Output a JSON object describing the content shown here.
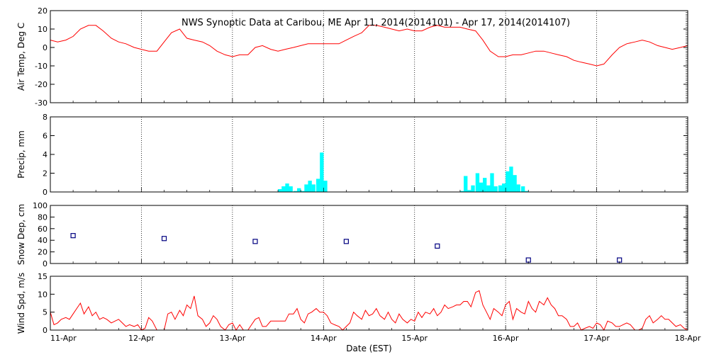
{
  "title": "NWS Synoptic Data at Caribou, ME   Apr 11, 2014(2014101) - Apr 17, 2014(2014107)",
  "colors": {
    "temp": "#ff0000",
    "precip": "#00ffff",
    "snow": "#000080",
    "wind": "#ff0000",
    "axis": "#000000"
  },
  "chart_data": [
    {
      "type": "line",
      "ylabel": "Air Temp, Deg C",
      "ylim": [
        -30,
        20
      ],
      "yticks": [
        -30,
        -20,
        -10,
        0,
        10,
        20
      ],
      "xlim": [
        0,
        7
      ],
      "x_unit": "days since Apr 11 00:00 EST",
      "series": [
        {
          "x": [
            0,
            0.08,
            0.17,
            0.25,
            0.33,
            0.42,
            0.5,
            0.58,
            0.67,
            0.75,
            0.83,
            0.92,
            1.0,
            1.08,
            1.17,
            1.25,
            1.33,
            1.42,
            1.5,
            1.58,
            1.67,
            1.75,
            1.83,
            1.92,
            2.0,
            2.08,
            2.17,
            2.25,
            2.33,
            2.42,
            2.5,
            2.58,
            2.67,
            2.75,
            2.83,
            2.92,
            3.0,
            3.08,
            3.17,
            3.25,
            3.33,
            3.42,
            3.5,
            3.58,
            3.67,
            3.75,
            3.83,
            3.92,
            4.0,
            4.08,
            4.17,
            4.25,
            4.33,
            4.42,
            4.5,
            4.58,
            4.67,
            4.75,
            4.83,
            4.92,
            5.0,
            5.08,
            5.17,
            5.25,
            5.33,
            5.42,
            5.5,
            5.58,
            5.67,
            5.75,
            5.83,
            5.92,
            6.0,
            6.08,
            6.17,
            6.25,
            6.33,
            6.42,
            6.5,
            6.58,
            6.67,
            6.75,
            6.83,
            6.92,
            7.0
          ],
          "y": [
            4,
            3,
            4,
            6,
            10,
            12,
            12,
            9,
            5,
            3,
            2,
            0,
            -1,
            -2,
            -2,
            3,
            8,
            10,
            5,
            4,
            3,
            1,
            -2,
            -4,
            -5,
            -4,
            -4,
            0,
            1,
            -1,
            -2,
            -1,
            0,
            1,
            2,
            2,
            2,
            2,
            2,
            4,
            6,
            8,
            12,
            12,
            11,
            10,
            9,
            10,
            9,
            9,
            11,
            12,
            11,
            11,
            11,
            10,
            9,
            4,
            -2,
            -5,
            -5,
            -4,
            -4,
            -3,
            -2,
            -2,
            -3,
            -4,
            -5,
            -7,
            -8,
            -9,
            -10,
            -9,
            -4,
            0,
            2,
            3,
            4,
            3,
            1,
            0,
            -1,
            0,
            1
          ]
        }
      ]
    },
    {
      "type": "bar",
      "ylabel": "Precip, mm",
      "ylim": [
        0,
        8
      ],
      "yticks": [
        0,
        2,
        4,
        6,
        8
      ],
      "xlim": [
        0,
        7
      ],
      "series": [
        {
          "x": [
            2.5,
            2.54,
            2.58,
            2.62,
            2.67,
            2.71,
            2.75,
            2.79,
            2.83,
            2.87,
            2.92,
            2.96,
            3.0,
            4.5,
            4.54,
            4.58,
            4.62,
            4.67,
            4.71,
            4.75,
            4.79,
            4.83,
            4.87,
            4.92,
            4.96,
            5.0,
            5.04,
            5.08,
            5.12,
            5.17,
            5.21
          ],
          "y": [
            0.3,
            0.6,
            0.9,
            0.6,
            0.1,
            0.4,
            0.1,
            0.8,
            1.2,
            0.8,
            1.4,
            4.2,
            1.2,
            0.1,
            1.7,
            0.2,
            0.7,
            2.0,
            1.0,
            1.5,
            0.7,
            2.0,
            0.6,
            0.7,
            0.9,
            2.2,
            2.7,
            1.8,
            0.8,
            0.6,
            0.1
          ]
        }
      ]
    },
    {
      "type": "scatter",
      "ylabel": "Snow Dep, cm",
      "ylim": [
        0,
        100
      ],
      "yticks": [
        0,
        20,
        40,
        60,
        80,
        100
      ],
      "xlim": [
        0,
        7
      ],
      "series": [
        {
          "x": [
            0.25,
            1.25,
            2.25,
            3.25,
            4.25,
            5.25,
            6.25
          ],
          "y": [
            48,
            43,
            38,
            38,
            30,
            6,
            6
          ]
        }
      ]
    },
    {
      "type": "line",
      "ylabel": "Wind Spd, m/s",
      "xlabel": "Date (EST)",
      "ylim": [
        0,
        15
      ],
      "yticks": [
        0,
        5,
        10,
        15
      ],
      "xlim": [
        0,
        7
      ],
      "xtick_labels": [
        "11-Apr",
        "12-Apr",
        "13-Apr",
        "14-Apr",
        "15-Apr",
        "16-Apr",
        "17-Apr",
        "18-Apr"
      ],
      "series": [
        {
          "x": [
            0,
            0.04,
            0.08,
            0.12,
            0.17,
            0.21,
            0.25,
            0.29,
            0.33,
            0.37,
            0.42,
            0.46,
            0.5,
            0.54,
            0.58,
            0.62,
            0.67,
            0.71,
            0.75,
            0.79,
            0.83,
            0.87,
            0.92,
            0.96,
            1.0,
            1.04,
            1.08,
            1.12,
            1.17,
            1.21,
            1.25,
            1.29,
            1.33,
            1.37,
            1.42,
            1.46,
            1.5,
            1.54,
            1.58,
            1.62,
            1.67,
            1.71,
            1.75,
            1.79,
            1.83,
            1.87,
            1.92,
            1.96,
            2.0,
            2.04,
            2.08,
            2.12,
            2.17,
            2.21,
            2.25,
            2.29,
            2.33,
            2.37,
            2.42,
            2.46,
            2.5,
            2.54,
            2.58,
            2.62,
            2.67,
            2.71,
            2.75,
            2.79,
            2.83,
            2.87,
            2.92,
            2.96,
            3.0,
            3.04,
            3.08,
            3.12,
            3.17,
            3.21,
            3.25,
            3.29,
            3.33,
            3.37,
            3.42,
            3.46,
            3.5,
            3.54,
            3.58,
            3.62,
            3.67,
            3.71,
            3.75,
            3.79,
            3.83,
            3.87,
            3.92,
            3.96,
            4.0,
            4.04,
            4.08,
            4.12,
            4.17,
            4.21,
            4.25,
            4.29,
            4.33,
            4.37,
            4.42,
            4.46,
            4.5,
            4.54,
            4.58,
            4.62,
            4.67,
            4.71,
            4.75,
            4.79,
            4.83,
            4.87,
            4.92,
            4.96,
            5.0,
            5.04,
            5.08,
            5.12,
            5.17,
            5.21,
            5.25,
            5.29,
            5.33,
            5.37,
            5.42,
            5.46,
            5.5,
            5.54,
            5.58,
            5.62,
            5.67,
            5.71,
            5.75,
            5.79,
            5.83,
            5.87,
            5.92,
            5.96,
            6.0,
            6.04,
            6.08,
            6.12,
            6.17,
            6.21,
            6.25,
            6.29,
            6.33,
            6.37,
            6.42,
            6.46,
            6.5,
            6.54,
            6.58,
            6.62,
            6.67,
            6.71,
            6.75,
            6.79,
            6.83,
            6.87,
            6.92,
            6.96,
            7.0
          ],
          "y": [
            5,
            1.5,
            2,
            3,
            3.5,
            3,
            4.5,
            6,
            7.5,
            4.5,
            6.5,
            4,
            5,
            3,
            3.5,
            3,
            2,
            2.5,
            3,
            2,
            1,
            1.5,
            1,
            1.5,
            0,
            0.5,
            3.5,
            2.5,
            0,
            0,
            0,
            4.5,
            5,
            3,
            5.5,
            4,
            7,
            6,
            9.5,
            4,
            3,
            1,
            2,
            4,
            3,
            1,
            0,
            1.5,
            2,
            0,
            1.5,
            0,
            0,
            1.5,
            3,
            3.5,
            1,
            1,
            2.5,
            2.5,
            2.5,
            2.5,
            2.5,
            4.5,
            4.5,
            6,
            3,
            2,
            4.5,
            5,
            6,
            5,
            5,
            4,
            2,
            1.5,
            1,
            0,
            1,
            2,
            5,
            4,
            3,
            5.5,
            4,
            4.5,
            6,
            4,
            3,
            5,
            3,
            2,
            4.5,
            3,
            2,
            3,
            2.5,
            5,
            3.5,
            5,
            4.5,
            6,
            4,
            5,
            7,
            6,
            6.5,
            7,
            7,
            8,
            8,
            6.5,
            10.5,
            11,
            7,
            5,
            3,
            6,
            5,
            4,
            7,
            8,
            3,
            6,
            5,
            4.5,
            8,
            6,
            5,
            8,
            7,
            9,
            7,
            6,
            4,
            4,
            3,
            1,
            1,
            2,
            0,
            0.5,
            1,
            0.5,
            2,
            1.5,
            0,
            2.5,
            2,
            1,
            1,
            1.5,
            2,
            1.5,
            0,
            0,
            0.5,
            3,
            4,
            2,
            3,
            4,
            3,
            3,
            2,
            1,
            1.5,
            0.5,
            0
          ]
        }
      ]
    }
  ]
}
